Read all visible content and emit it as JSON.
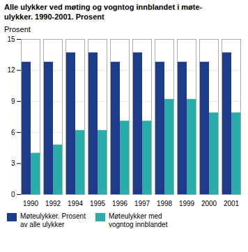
{
  "chart_data": {
    "type": "bar",
    "title": "Alle ulykker ved møting og vogntog innblandet i møte-\nulykker. 1990-2001. Prosent",
    "ylabel": "Prosent",
    "categories": [
      "1990",
      "1992",
      "1994",
      "1995",
      "1996",
      "1997",
      "1998",
      "1999",
      "2000",
      "2001"
    ],
    "series": [
      {
        "name": "Møteulykker. Prosent\nav alle ulykker",
        "color": "#1e3a8a",
        "values": [
          12.8,
          12.8,
          13.7,
          13.7,
          12.8,
          13.7,
          12.8,
          12.8,
          12.8,
          13.7
        ]
      },
      {
        "name": "Møteulykker med\nvogntog innblandet",
        "color": "#2aada8",
        "values": [
          4.0,
          4.8,
          6.2,
          6.2,
          7.1,
          7.1,
          9.2,
          9.2,
          7.9,
          7.9
        ]
      }
    ],
    "ylim": [
      0,
      15
    ],
    "yticks": [
      0,
      3,
      6,
      9,
      12,
      15
    ],
    "grid": true,
    "legend": "bottom"
  }
}
